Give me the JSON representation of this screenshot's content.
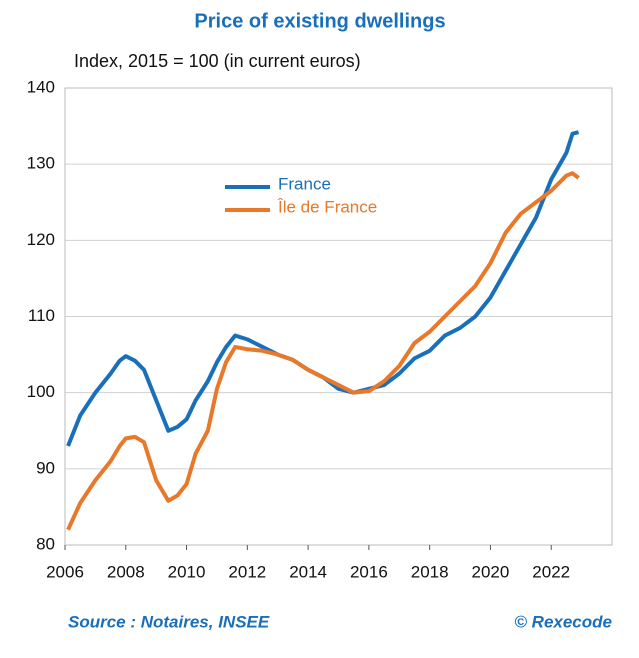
{
  "chart_data": {
    "type": "line",
    "title": "Price of existing dwellings",
    "subtitle": "Index, 2015 = 100 (in current euros)",
    "source": "Source : Notaires, INSEE",
    "credit": "© Rexecode",
    "x": [
      2006.1,
      2006.5,
      2007,
      2007.5,
      2007.8,
      2008,
      2008.3,
      2008.6,
      2009,
      2009.4,
      2009.7,
      2010,
      2010.3,
      2010.7,
      2011,
      2011.3,
      2011.6,
      2012,
      2012.5,
      2013,
      2013.5,
      2014,
      2014.5,
      2015,
      2015.5,
      2016,
      2016.5,
      2017,
      2017.5,
      2018,
      2018.5,
      2019,
      2019.5,
      2020,
      2020.5,
      2021,
      2021.5,
      2022,
      2022.5,
      2022.7,
      2022.9
    ],
    "series": [
      {
        "name": "France",
        "color": "#1a6fba",
        "values": [
          93,
          97,
          100,
          102.5,
          104.2,
          104.8,
          104.2,
          103,
          99,
          95,
          95.5,
          96.5,
          99,
          101.5,
          104,
          106,
          107.5,
          107,
          106,
          105,
          104.3,
          103,
          102,
          100.5,
          100,
          100.5,
          101,
          102.5,
          104.5,
          105.5,
          107.5,
          108.5,
          110,
          112.5,
          116,
          119.5,
          123,
          128,
          131.5,
          134,
          134.2
        ]
      },
      {
        "name": "Île de France",
        "color": "#e8782a",
        "values": [
          82,
          85.5,
          88.5,
          91,
          93,
          94,
          94.2,
          93.5,
          88.5,
          85.8,
          86.5,
          88,
          92,
          95,
          100.5,
          104,
          106,
          105.7,
          105.5,
          105,
          104.3,
          103,
          102,
          101,
          100,
          100.2,
          101.5,
          103.5,
          106.5,
          108,
          110,
          112,
          114,
          117,
          121,
          123.5,
          125,
          126.5,
          128.5,
          128.8,
          128.2
        ]
      }
    ],
    "xlim": [
      2006,
      2024
    ],
    "xticks": [
      2006,
      2008,
      2010,
      2012,
      2014,
      2016,
      2018,
      2020,
      2022
    ],
    "ylim": [
      80,
      140
    ],
    "yticks": [
      80,
      90,
      100,
      110,
      120,
      130,
      140
    ],
    "grid": true
  }
}
